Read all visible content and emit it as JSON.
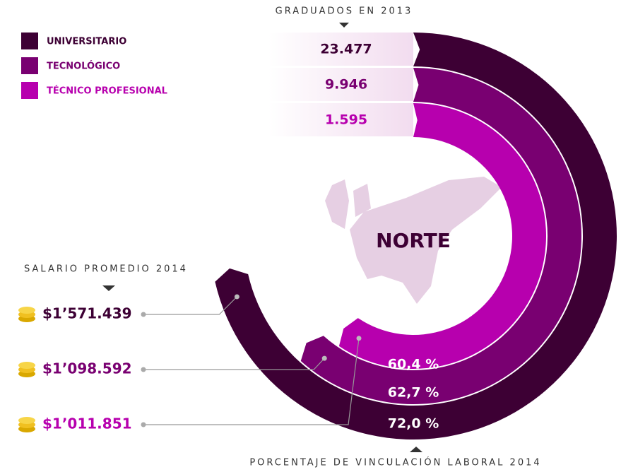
{
  "graduates_title": "GRADUADOS EN 2013",
  "salary_title": "SALARIO PROMEDIO 2014",
  "employment_title": "PORCENTAJE DE VINCULACIÓN LABORAL 2014",
  "region": "NORTE",
  "rings": [
    {
      "name": "UNIVERSITARIO",
      "color": "#3d0034",
      "graduates": "23.477",
      "employment": "72,0 %",
      "salary": "$1’571.439"
    },
    {
      "name": "TECNOLÓGICO",
      "color": "#790071",
      "graduates": "9.946",
      "employment": "62,7 %",
      "salary": "$1’098.592"
    },
    {
      "name": "TÉCNICO PROFESIONAL",
      "color": "#b700ae",
      "graduates": "1.595",
      "employment": "60,4 %",
      "salary": "$1’011.851"
    }
  ]
}
